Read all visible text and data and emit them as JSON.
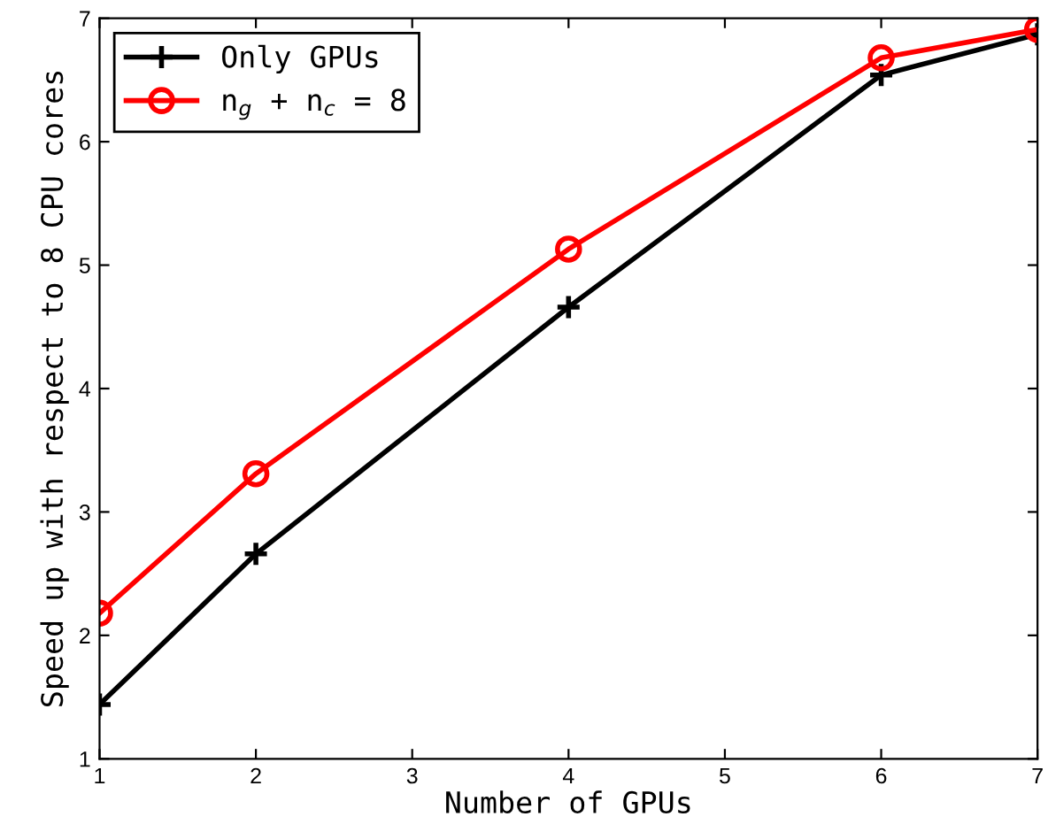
{
  "chart_data": {
    "type": "line",
    "xlabel": "Number of GPUs",
    "ylabel": "Speed up with respect to 8 CPU cores",
    "x": [
      1,
      2,
      4,
      6,
      7
    ],
    "series": [
      {
        "name": "Only GPUs",
        "color": "#000000",
        "marker": "cross",
        "values": [
          1.44,
          2.66,
          4.66,
          6.54,
          6.87
        ]
      },
      {
        "name": "n$_{g}$ + n$_{c}$ = 8",
        "color": "#ff0000",
        "marker": "circle",
        "values": [
          2.18,
          3.31,
          5.13,
          6.68,
          6.91
        ]
      }
    ],
    "xlim": [
      1,
      7
    ],
    "ylim": [
      1,
      7
    ],
    "xticks": [
      1,
      2,
      3,
      4,
      5,
      6,
      7
    ],
    "yticks": [
      1,
      2,
      3,
      4,
      5,
      6,
      7
    ],
    "grid": false,
    "legend": "top left",
    "line_style": "solid"
  }
}
